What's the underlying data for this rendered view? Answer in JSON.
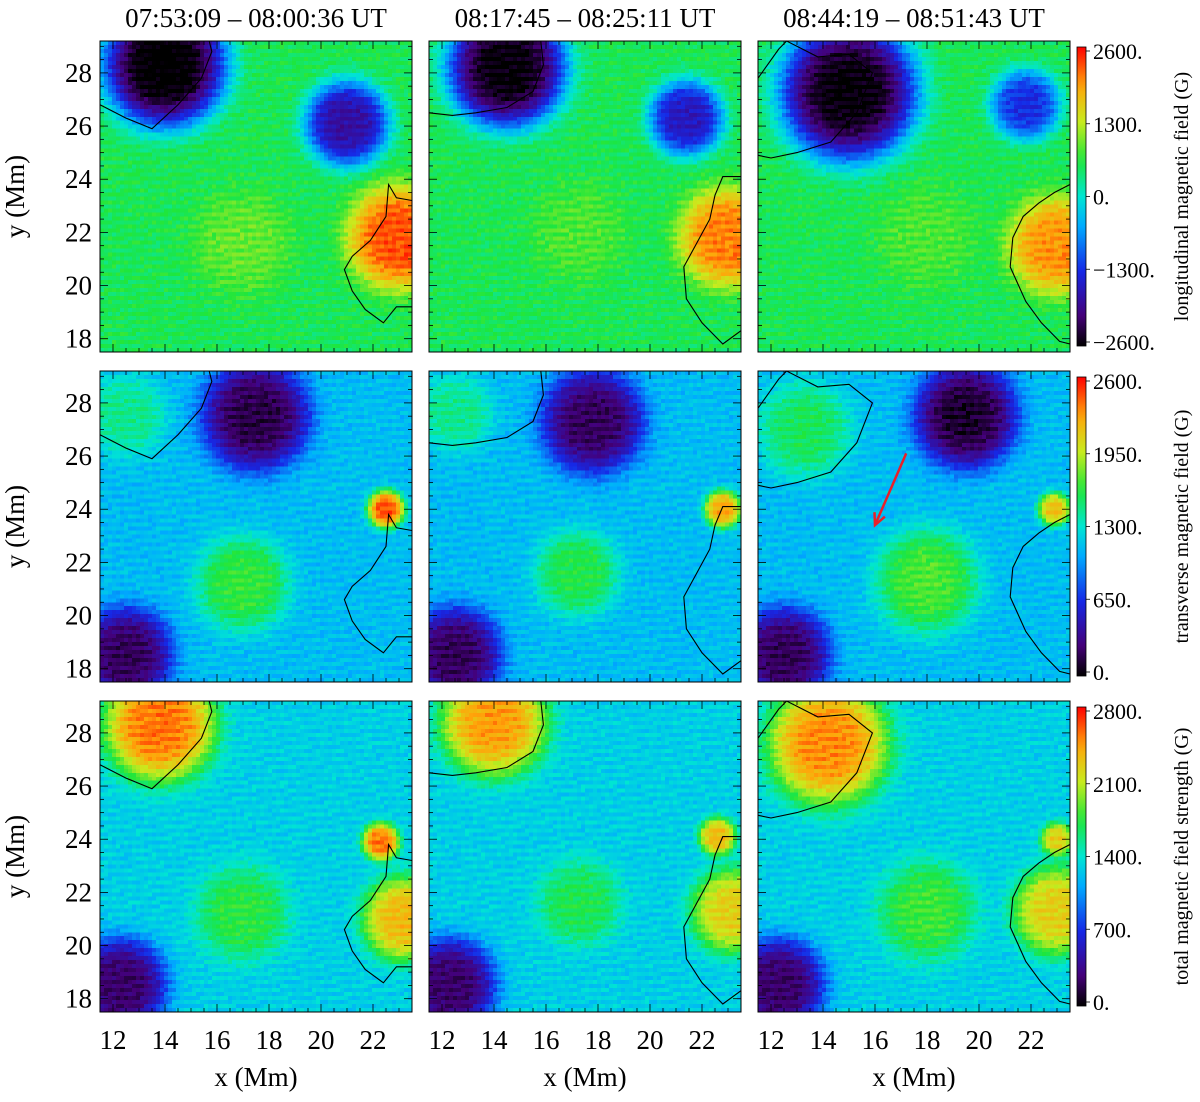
{
  "chart_data": {
    "type": "heatmap",
    "column_titles": [
      "07:53:09 – 08:00:36 UT",
      "08:17:45 – 08:25:11 UT",
      "08:44:19 – 08:51:43 UT"
    ],
    "xlabel": "x (Mm)",
    "ylabel": "y (Mm)",
    "xlim": [
      11.5,
      23.5
    ],
    "ylim": [
      17.5,
      29.2
    ],
    "xticks": [
      "12",
      "14",
      "16",
      "18",
      "20",
      "22"
    ],
    "yticks": [
      "18",
      "20",
      "22",
      "24",
      "26",
      "28"
    ],
    "colormap": "rainbow (black-purple-blue-cyan-green-yellow-red)",
    "rows": [
      {
        "quantity": "longitudinal",
        "colorbar_label": "longitudinal magnetic field (G)",
        "colorbar_range": [
          -2600,
          2600
        ],
        "colorbar_ticks": [
          "2600.",
          "1300.",
          "0.",
          "−1300.",
          "−2600."
        ],
        "panels": [
          {
            "features": [
              {
                "type": "negative",
                "x": 14.0,
                "y": 28.3,
                "r": 2.6,
                "v": -2600
              },
              {
                "type": "negative",
                "x": 21.0,
                "y": 26.1,
                "r": 1.8,
                "v": -1700
              },
              {
                "type": "positive",
                "x": 23.0,
                "y": 21.8,
                "r": 2.2,
                "v": 2400
              },
              {
                "type": "positive",
                "x": 17.0,
                "y": 21.6,
                "r": 2.2,
                "v": 1000
              }
            ]
          },
          {
            "features": [
              {
                "type": "negative",
                "x": 14.5,
                "y": 28.2,
                "r": 2.5,
                "v": -2500
              },
              {
                "type": "negative",
                "x": 21.4,
                "y": 26.3,
                "r": 1.6,
                "v": -1500
              },
              {
                "type": "positive",
                "x": 23.0,
                "y": 21.8,
                "r": 2.1,
                "v": 2200
              },
              {
                "type": "positive",
                "x": 17.3,
                "y": 22.0,
                "r": 2.1,
                "v": 900
              }
            ]
          },
          {
            "features": [
              {
                "type": "negative",
                "x": 15.0,
                "y": 27.3,
                "r": 2.9,
                "v": -2500
              },
              {
                "type": "negative",
                "x": 21.8,
                "y": 26.8,
                "r": 1.5,
                "v": -1200
              },
              {
                "type": "positive",
                "x": 23.0,
                "y": 21.5,
                "r": 2.1,
                "v": 2100
              },
              {
                "type": "positive",
                "x": 18.0,
                "y": 21.8,
                "r": 2.2,
                "v": 900
              }
            ]
          }
        ]
      },
      {
        "quantity": "transverse",
        "colorbar_label": "transverse magnetic field (G)",
        "colorbar_range": [
          0,
          2600
        ],
        "colorbar_ticks": [
          "2600.",
          "1950.",
          "1300.",
          "650.",
          "0."
        ],
        "panels": [
          {
            "features": [
              {
                "type": "strong",
                "x": 22.5,
                "y": 24.0,
                "r": 0.8,
                "v": 2500
              },
              {
                "type": "strong",
                "x": 17.0,
                "y": 21.2,
                "r": 2.0,
                "v": 1700
              },
              {
                "type": "strong",
                "x": 12.5,
                "y": 27.5,
                "r": 1.7,
                "v": 1500
              },
              {
                "type": "weak",
                "x": 17.5,
                "y": 27.5,
                "r": 2.3,
                "v": 200
              },
              {
                "type": "weak",
                "x": 12.5,
                "y": 18.5,
                "r": 2.0,
                "v": 250
              }
            ]
          },
          {
            "features": [
              {
                "type": "strong",
                "x": 22.8,
                "y": 24.0,
                "r": 0.8,
                "v": 2300
              },
              {
                "type": "strong",
                "x": 17.2,
                "y": 21.6,
                "r": 1.8,
                "v": 1650
              },
              {
                "type": "strong",
                "x": 12.5,
                "y": 27.6,
                "r": 1.6,
                "v": 1500
              },
              {
                "type": "weak",
                "x": 17.8,
                "y": 27.3,
                "r": 2.2,
                "v": 250
              },
              {
                "type": "weak",
                "x": 12.5,
                "y": 18.5,
                "r": 2.0,
                "v": 250
              }
            ]
          },
          {
            "features": [
              {
                "type": "strong",
                "x": 22.9,
                "y": 24.0,
                "r": 0.7,
                "v": 2200
              },
              {
                "type": "strong",
                "x": 18.0,
                "y": 21.3,
                "r": 2.2,
                "v": 1750
              },
              {
                "type": "strong",
                "x": 13.3,
                "y": 27.0,
                "r": 2.0,
                "v": 1600
              },
              {
                "type": "weak",
                "x": 19.5,
                "y": 27.5,
                "r": 2.2,
                "v": 150
              },
              {
                "type": "weak",
                "x": 12.5,
                "y": 18.5,
                "r": 2.0,
                "v": 250
              }
            ]
          }
        ],
        "annotation_arrow": {
          "panel": 2,
          "from": [
            17.2,
            26.1
          ],
          "to": [
            16.0,
            23.4
          ],
          "color": "#e8202a"
        }
      },
      {
        "quantity": "total",
        "colorbar_label": "total magnetic field strength (G)",
        "colorbar_range": [
          0,
          2800
        ],
        "colorbar_ticks": [
          "2800.",
          "2100.",
          "1400.",
          "700.",
          "0."
        ],
        "panels": [
          {
            "features": [
              {
                "type": "strong",
                "x": 13.8,
                "y": 28.3,
                "r": 2.4,
                "v": 2600
              },
              {
                "type": "strong",
                "x": 22.3,
                "y": 23.9,
                "r": 0.8,
                "v": 2600
              },
              {
                "type": "strong",
                "x": 23.2,
                "y": 21.0,
                "r": 1.8,
                "v": 2400
              },
              {
                "type": "strong",
                "x": 17.0,
                "y": 21.2,
                "r": 2.0,
                "v": 1800
              },
              {
                "type": "weak",
                "x": 12.3,
                "y": 18.5,
                "r": 2.0,
                "v": 300
              }
            ]
          },
          {
            "features": [
              {
                "type": "strong",
                "x": 14.0,
                "y": 28.4,
                "r": 2.3,
                "v": 2500
              },
              {
                "type": "strong",
                "x": 22.6,
                "y": 24.1,
                "r": 0.8,
                "v": 2400
              },
              {
                "type": "strong",
                "x": 23.2,
                "y": 21.3,
                "r": 1.8,
                "v": 2300
              },
              {
                "type": "strong",
                "x": 17.3,
                "y": 21.6,
                "r": 1.8,
                "v": 1750
              },
              {
                "type": "weak",
                "x": 12.3,
                "y": 18.5,
                "r": 2.0,
                "v": 300
              }
            ]
          },
          {
            "features": [
              {
                "type": "strong",
                "x": 14.2,
                "y": 27.6,
                "r": 2.6,
                "v": 2550
              },
              {
                "type": "strong",
                "x": 23.0,
                "y": 24.0,
                "r": 0.7,
                "v": 2300
              },
              {
                "type": "strong",
                "x": 23.0,
                "y": 21.3,
                "r": 1.9,
                "v": 2300
              },
              {
                "type": "strong",
                "x": 18.0,
                "y": 21.3,
                "r": 2.1,
                "v": 1850
              },
              {
                "type": "weak",
                "x": 12.3,
                "y": 18.5,
                "r": 2.0,
                "v": 300
              }
            ]
          }
        ]
      }
    ],
    "contours": [
      {
        "negative": [
          [
            11.5,
            26.8
          ],
          [
            12.5,
            26.3
          ],
          [
            13.5,
            25.9
          ],
          [
            14.5,
            26.8
          ],
          [
            15.4,
            27.8
          ],
          [
            15.8,
            28.8
          ],
          [
            15.7,
            29.2
          ]
        ],
        "positive": [
          [
            23.5,
            23.2
          ],
          [
            22.9,
            23.3
          ],
          [
            22.6,
            23.8
          ],
          [
            22.5,
            22.6
          ],
          [
            21.9,
            21.7
          ],
          [
            21.2,
            21.1
          ],
          [
            20.9,
            20.6
          ],
          [
            21.2,
            19.8
          ],
          [
            21.7,
            19.1
          ],
          [
            22.4,
            18.6
          ],
          [
            22.9,
            19.2
          ],
          [
            23.5,
            19.2
          ]
        ]
      },
      {
        "negative": [
          [
            11.5,
            26.5
          ],
          [
            12.4,
            26.4
          ],
          [
            13.3,
            26.5
          ],
          [
            14.5,
            26.7
          ],
          [
            15.5,
            27.3
          ],
          [
            15.9,
            28.3
          ],
          [
            15.8,
            29.2
          ]
        ],
        "positive": [
          [
            23.5,
            24.1
          ],
          [
            22.8,
            24.1
          ],
          [
            22.5,
            23.4
          ],
          [
            22.3,
            22.5
          ],
          [
            21.8,
            21.6
          ],
          [
            21.3,
            20.7
          ],
          [
            21.4,
            19.5
          ],
          [
            22.0,
            18.6
          ],
          [
            22.8,
            17.8
          ],
          [
            23.5,
            18.3
          ]
        ]
      },
      {
        "negative": [
          [
            11.5,
            27.8
          ],
          [
            12.3,
            28.9
          ],
          [
            12.6,
            29.2
          ],
          [
            13.8,
            28.6
          ],
          [
            15.0,
            28.7
          ],
          [
            15.9,
            28.0
          ],
          [
            15.3,
            26.5
          ],
          [
            14.3,
            25.4
          ],
          [
            13.0,
            25.0
          ],
          [
            12.0,
            24.8
          ],
          [
            11.5,
            24.9
          ]
        ],
        "positive": [
          [
            23.5,
            23.8
          ],
          [
            22.9,
            23.5
          ],
          [
            22.3,
            23.1
          ],
          [
            21.7,
            22.6
          ],
          [
            21.3,
            21.8
          ],
          [
            21.2,
            20.7
          ],
          [
            21.8,
            19.4
          ],
          [
            22.4,
            18.6
          ],
          [
            23.1,
            17.9
          ],
          [
            23.5,
            17.8
          ]
        ]
      }
    ]
  }
}
